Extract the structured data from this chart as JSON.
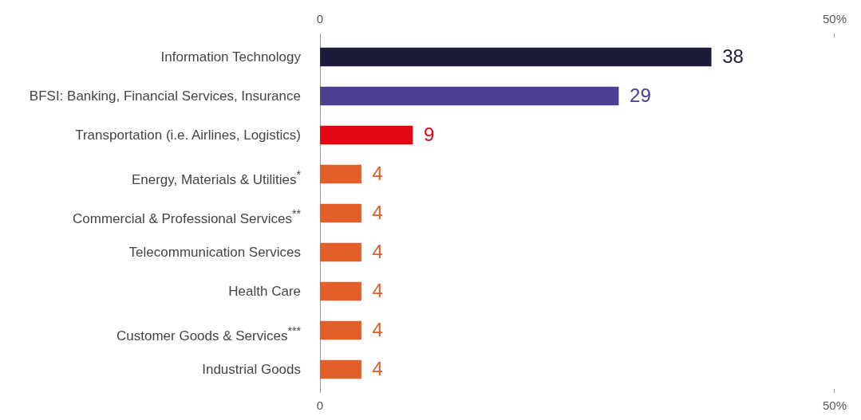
{
  "chart_data": {
    "type": "bar",
    "orientation": "horizontal",
    "categories": [
      "Information Technology",
      "BFSI: Banking, Financial Services, Insurance",
      "Transportation (i.e. Airlines, Logistics)",
      "Energy, Materials & Utilities$^{*}$",
      "Commercial & Professional Services$^{**}$",
      "Telecommunication Services",
      "Health Care",
      "Customer Goods & Services$^{***}$",
      "Industrial Goods"
    ],
    "values": [
      38,
      29,
      9,
      4,
      4,
      4,
      4,
      4,
      4
    ],
    "colors": [
      "#1c1c3a",
      "#4b4093",
      "#e30613",
      "#e35f2a",
      "#e35f2a",
      "#e35f2a",
      "#e35f2a",
      "#e35f2a",
      "#e35f2a"
    ],
    "xlim": [
      0,
      50
    ],
    "xticks": [
      0,
      {
        "value": 50,
        "label": "50%"
      }
    ],
    "x2lim": [
      0,
      50
    ],
    "x2ticks": [
      0,
      {
        "value": 50,
        "label": "50%"
      }
    ],
    "data_labels": true,
    "grid": false,
    "legend": false
  }
}
